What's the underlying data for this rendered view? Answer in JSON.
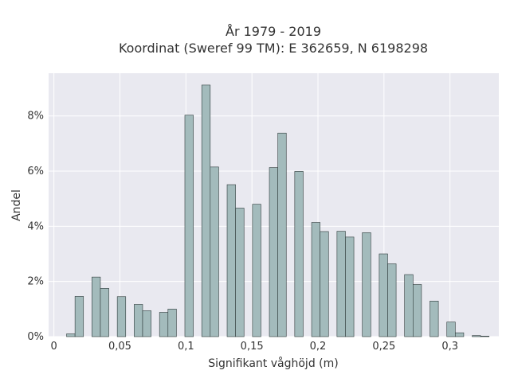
{
  "chart_data": {
    "type": "bar",
    "title_line1": "År 1979 - 2019",
    "title_line2": "Koordinat (Sweref 99 TM): E 362659, N 6198298",
    "xlabel": "Signifikant våghöjd (m)",
    "ylabel": "Andel",
    "xlim": [
      -0.004,
      0.337
    ],
    "ylim": [
      0,
      0.0955
    ],
    "x_ticks": [
      {
        "value": 0,
        "label": "0"
      },
      {
        "value": 0.05,
        "label": "0,05"
      },
      {
        "value": 0.1,
        "label": "0,1"
      },
      {
        "value": 0.15,
        "label": "0,15"
      },
      {
        "value": 0.2,
        "label": "0,2"
      },
      {
        "value": 0.25,
        "label": "0,25"
      },
      {
        "value": 0.3,
        "label": "0,3"
      }
    ],
    "y_ticks": [
      {
        "value": 0,
        "label": "0%"
      },
      {
        "value": 0.02,
        "label": "2%"
      },
      {
        "value": 0.04,
        "label": "4%"
      },
      {
        "value": 0.06,
        "label": "6%"
      },
      {
        "value": 0.08,
        "label": "8%"
      }
    ],
    "bin_width": 0.0064,
    "bins": [
      {
        "x": 0.0128,
        "value": 0.001
      },
      {
        "x": 0.0192,
        "value": 0.0146
      },
      {
        "x": 0.032,
        "value": 0.0216
      },
      {
        "x": 0.0384,
        "value": 0.0175
      },
      {
        "x": 0.0512,
        "value": 0.0145
      },
      {
        "x": 0.064,
        "value": 0.0117
      },
      {
        "x": 0.0704,
        "value": 0.0094
      },
      {
        "x": 0.0832,
        "value": 0.0088
      },
      {
        "x": 0.0896,
        "value": 0.01
      },
      {
        "x": 0.1024,
        "value": 0.0803
      },
      {
        "x": 0.1152,
        "value": 0.0912
      },
      {
        "x": 0.1216,
        "value": 0.0615
      },
      {
        "x": 0.1344,
        "value": 0.0551
      },
      {
        "x": 0.1408,
        "value": 0.0466
      },
      {
        "x": 0.1536,
        "value": 0.048
      },
      {
        "x": 0.1664,
        "value": 0.0613
      },
      {
        "x": 0.1728,
        "value": 0.0738
      },
      {
        "x": 0.1856,
        "value": 0.0599
      },
      {
        "x": 0.1984,
        "value": 0.0414
      },
      {
        "x": 0.2048,
        "value": 0.0381
      },
      {
        "x": 0.2176,
        "value": 0.0382
      },
      {
        "x": 0.224,
        "value": 0.0361
      },
      {
        "x": 0.2368,
        "value": 0.0377
      },
      {
        "x": 0.2496,
        "value": 0.03
      },
      {
        "x": 0.256,
        "value": 0.0264
      },
      {
        "x": 0.2688,
        "value": 0.0225
      },
      {
        "x": 0.2752,
        "value": 0.0189
      },
      {
        "x": 0.288,
        "value": 0.0129
      },
      {
        "x": 0.3008,
        "value": 0.0053
      },
      {
        "x": 0.3072,
        "value": 0.0014
      },
      {
        "x": 0.32,
        "value": 0.0004
      },
      {
        "x": 0.3264,
        "value": 0.0002
      }
    ],
    "grid": true,
    "colors": {
      "bar_fill": "#a3bbbc",
      "bar_stroke": "#2f3b3b",
      "plot_background": "#e9e9f0",
      "grid": "#ffffff"
    }
  }
}
